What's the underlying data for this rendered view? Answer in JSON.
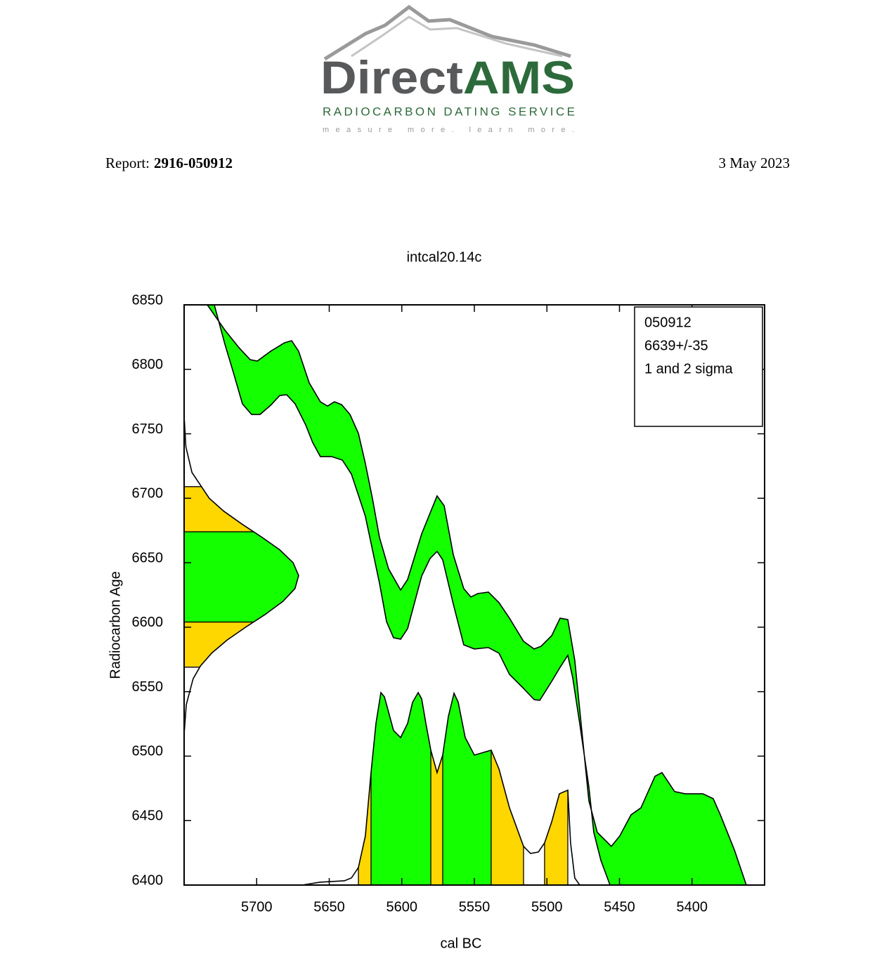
{
  "logo": {
    "name_part1": "Direct",
    "name_part2": "AMS",
    "subtitle": "RADIOCARBON DATING SERVICE",
    "tagline": "measure more. learn more."
  },
  "report": {
    "label": "Report:",
    "number": "2916-050912",
    "date": "3 May 2023"
  },
  "chart_data": {
    "type": "calibration",
    "title": "intcal20.14c",
    "x_label": "cal BC",
    "y_label": "Radiocarbon Age",
    "legend": [
      "050912",
      "6639+/-35",
      "1 and 2 sigma"
    ],
    "xlim": [
      5750,
      5350
    ],
    "ylim": [
      6400,
      6850
    ],
    "xticks": [
      5700,
      5650,
      5600,
      5550,
      5500,
      5450,
      5400
    ],
    "yticks": [
      6400,
      6450,
      6500,
      6550,
      6600,
      6650,
      6700,
      6750,
      6800,
      6850
    ],
    "curve_color": "#14ff00",
    "sigma1_color": "#14ff00",
    "sigma2_color": "#ffd700",
    "curve_upper": {
      "x": [
        5734.0,
        5721.9,
        5712.2,
        5704.5,
        5699.6,
        5690.4,
        5680.8,
        5675.9,
        5671.1,
        5663.8,
        5656.1,
        5651.2,
        5646.4,
        5641.5,
        5635.7,
        5629.9,
        5625.1,
        5620.2,
        5615.4,
        5609.1,
        5600.8,
        5596.0,
        5586.3,
        5575.7,
        5570.8,
        5564.5,
        5557.3,
        5552.4,
        5547.6,
        5540.3,
        5533.0,
        5525.8,
        5516.1,
        5508.8,
        5504.0,
        5496.7,
        5490.9,
        5485.6,
        5480.8,
        5471.1,
        5465.3,
        5455.6,
        5449.8,
        5442.0,
        5435.2,
        5425.5,
        5420.7,
        5412.0,
        5404.7,
        5392.6,
        5385.4,
        5380.5,
        5370.8,
        5362.6
      ],
      "y": [
        6850,
        6830.4,
        6816.8,
        6807.5,
        6806.4,
        6814.0,
        6820.6,
        6822.2,
        6814.0,
        6789.5,
        6774.8,
        6771.5,
        6774.8,
        6772.6,
        6765.0,
        6750.3,
        6726.9,
        6699.6,
        6669.7,
        6645.2,
        6628.8,
        6637.0,
        6672.4,
        6701.8,
        6694.2,
        6656.1,
        6629.9,
        6623.4,
        6626.1,
        6627.2,
        6619.0,
        6607.0,
        6589.0,
        6583.1,
        6585.2,
        6593.4,
        6607.0,
        6605.9,
        6574.3,
        6465.4,
        6440.9,
        6430.0,
        6438.1,
        6454.5,
        6459.9,
        6484.4,
        6487.2,
        6472.5,
        6470.8,
        6470.8,
        6467.0,
        6454.5,
        6427.2,
        6400
      ]
    },
    "curve_lower": {
      "x": [
        5729.2,
        5721.9,
        5716.1,
        5709.8,
        5703.5,
        5697.7,
        5690.4,
        5684.1,
        5679.3,
        5673.5,
        5666.2,
        5661.4,
        5656.1,
        5648.3,
        5641.0,
        5634.7,
        5629.9,
        5625.1,
        5615.4,
        5610.5,
        5605.7,
        5600.8,
        5596.0,
        5586.3,
        5580.5,
        5575.7,
        5571.8,
        5564.5,
        5557.3,
        5550.0,
        5540.3,
        5533.0,
        5525.8,
        5516.1,
        5508.8,
        5504.9,
        5496.7,
        5490.9,
        5485.6,
        5482.2,
        5477.4,
        5471.1,
        5467.7,
        5462.8,
        5456.5
      ],
      "y": [
        6850,
        6819.5,
        6797.7,
        6773.2,
        6765.0,
        6765.0,
        6772.1,
        6779.7,
        6780.3,
        6773.2,
        6756.8,
        6743.2,
        6732.3,
        6732.3,
        6729.6,
        6718.7,
        6702.4,
        6686.0,
        6634.3,
        6604.3,
        6591.8,
        6590.7,
        6598.9,
        6639.7,
        6653.3,
        6658.8,
        6652.2,
        6617.9,
        6586.3,
        6583.1,
        6584.2,
        6579.8,
        6563.4,
        6552.5,
        6543.8,
        6543.3,
        6558.0,
        6568.9,
        6578.2,
        6560.7,
        6525.3,
        6476.3,
        6440.9,
        6419.1,
        6400
      ]
    },
    "calendar_density": {
      "x": [
        5668.6,
        5656.5,
        5649.3,
        5639.6,
        5634.7,
        5629.9,
        5625.1,
        5621.2,
        5617.8,
        5614.4,
        5612.0,
        5609.6,
        5605.7,
        5600.8,
        5596.0,
        5592.6,
        5588.7,
        5586.3,
        5583.4,
        5580.0,
        5575.7,
        5571.8,
        5567.9,
        5564.0,
        5561.1,
        5556.3,
        5550.0,
        5538.4,
        5533.0,
        5525.8,
        5516.1,
        5511.3,
        5505.9,
        5501.6,
        5496.7,
        5491.4,
        5485.6,
        5483.7,
        5480.8,
        5477.4
      ],
      "y": [
        6400,
        6402.2,
        6402.7,
        6403.3,
        6405.5,
        6413.6,
        6438.1,
        6487.2,
        6525.3,
        6549.3,
        6546.0,
        6536.2,
        6519.9,
        6514.4,
        6525.3,
        6541.7,
        6549.3,
        6544.4,
        6525.3,
        6504.6,
        6487.2,
        6500.8,
        6530.8,
        6548.8,
        6541.7,
        6514.4,
        6500.8,
        6504.6,
        6489.9,
        6459.9,
        6430.0,
        6424.5,
        6425.6,
        6432.7,
        6449.0,
        6470.8,
        6473.6,
        6432.7,
        6405.5,
        6400
      ]
    },
    "calendar_sigma2": [
      [
        5629.9,
        5516.1
      ],
      [
        5501.6,
        5485.6
      ]
    ],
    "calendar_sigma1": [
      [
        5621.2,
        5580.0
      ],
      [
        5571.8,
        5538.4
      ]
    ],
    "age_density": {
      "y": [
        6760,
        6740,
        6720,
        6700,
        6690,
        6680,
        6670,
        6660,
        6650,
        6640,
        6630,
        6620,
        6610,
        6600,
        6590,
        6580,
        6570,
        6560,
        6540,
        6520
      ],
      "x": [
        5749.8,
        5748.8,
        5744.6,
        5732.7,
        5722.7,
        5710.2,
        5696.7,
        5684.1,
        5674.9,
        5671.1,
        5673.6,
        5681.9,
        5694.0,
        5707.6,
        5720.4,
        5730.9,
        5738.7,
        5743.8,
        5748.5,
        5749.8
      ]
    },
    "age_sigma2": [
      6569,
      6709
    ],
    "age_sigma1": [
      6604,
      6674
    ]
  }
}
